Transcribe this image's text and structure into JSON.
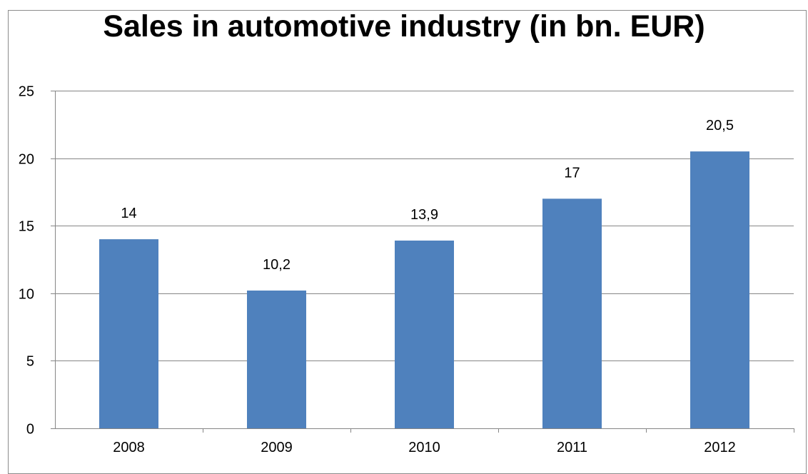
{
  "chart_data": {
    "type": "bar",
    "title": "Sales in automotive industry (in bn. EUR)",
    "xlabel": "",
    "ylabel": "",
    "categories": [
      "2008",
      "2009",
      "2010",
      "2011",
      "2012"
    ],
    "values": [
      14,
      10.2,
      13.9,
      17,
      20.5
    ],
    "data_labels": [
      "14",
      "10,2",
      "13,9",
      "17",
      "20,5"
    ],
    "ylim": [
      0,
      25
    ],
    "yticks": [
      0,
      5,
      10,
      15,
      20,
      25
    ],
    "grid": true,
    "legend": "none",
    "bar_color": "#4f81bd",
    "grid_color": "#868686"
  }
}
